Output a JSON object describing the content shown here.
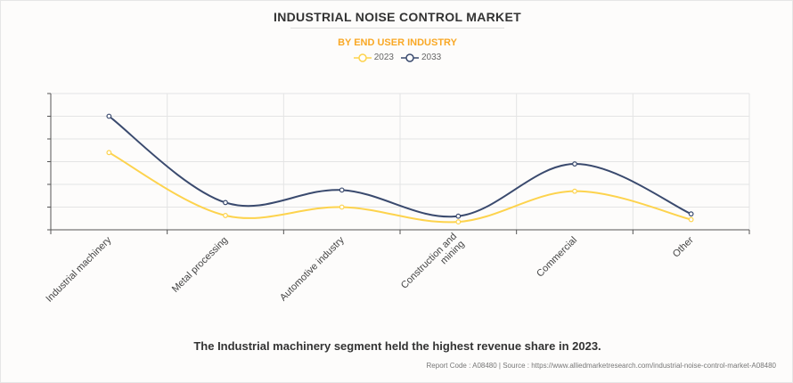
{
  "chart_data": {
    "type": "line",
    "title": "INDUSTRIAL NOISE CONTROL MARKET",
    "subtitle": "BY END USER INDUSTRY",
    "categories": [
      "Industrial machinery",
      "Metal processing",
      "Automotive industry",
      "Construction and mining",
      "Commercial",
      "Other"
    ],
    "series": [
      {
        "name": "2023",
        "color": "#fdd34d",
        "values": [
          3.4,
          0.63,
          1.0,
          0.35,
          1.7,
          0.45
        ]
      },
      {
        "name": "2033",
        "color": "#3a4a6e",
        "values": [
          5.0,
          1.2,
          1.75,
          0.6,
          2.9,
          0.7
        ]
      }
    ],
    "xlabel": "",
    "ylabel": "",
    "ylim": [
      0,
      6
    ],
    "y_tick_labels_shown": false,
    "grid": true,
    "smooth": true,
    "legend_position": "top-center"
  },
  "footer": {
    "note": "The Industrial machinery segment held the highest revenue share in 2023.",
    "source": "Report Code : A08480  |  Source : https://www.alliedmarketresearch.com/industrial-noise-control-market-A08480"
  }
}
